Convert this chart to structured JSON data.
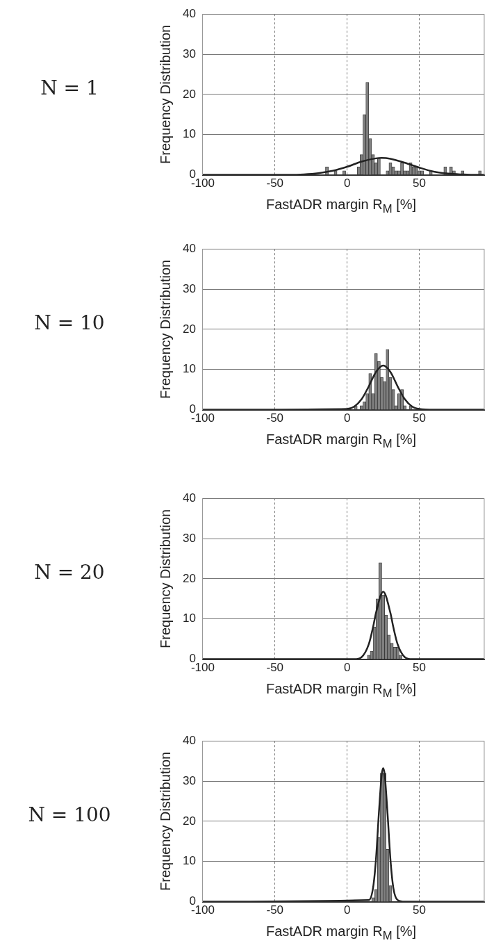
{
  "chart_data": [
    {
      "type": "histogram",
      "title": "N = 1",
      "xlabel": "FastADR margin R$_{M}$ [%]",
      "ylabel": "Frequency Distribution",
      "xlim": [
        -100,
        95
      ],
      "xticks": [
        -100,
        -50,
        0,
        50
      ],
      "ylim": [
        0,
        40
      ],
      "yticks": [
        0,
        10,
        20,
        30,
        40
      ],
      "grid": true,
      "legend": false,
      "marker": "none",
      "series": [
        {
          "type": "histogram",
          "color": "#808080",
          "bins": [
            -15,
            -13,
            -11,
            -9,
            -7,
            -5,
            -3,
            -1,
            1,
            3,
            5,
            7,
            9,
            11,
            13,
            15,
            17,
            19,
            21,
            23,
            25,
            27,
            29,
            31,
            33,
            35,
            37,
            39,
            41,
            43,
            45,
            47,
            49,
            51,
            53,
            55,
            57,
            59,
            61,
            63,
            65,
            67,
            69,
            71,
            73,
            75,
            77,
            79,
            81,
            83,
            85,
            87,
            89,
            91,
            93
          ],
          "values": [
            2,
            0,
            0,
            1,
            0,
            0,
            1,
            0,
            0,
            0,
            0,
            2,
            5,
            15,
            23,
            9,
            5,
            3,
            4,
            0,
            0,
            1,
            3,
            2,
            1,
            1,
            3,
            1,
            1,
            3,
            2,
            2,
            1,
            1,
            0,
            0,
            1,
            0,
            0,
            0,
            0,
            2,
            0,
            2,
            1,
            0,
            0,
            1,
            0,
            0,
            0,
            0,
            0,
            1
          ]
        },
        {
          "type": "line",
          "color": "#222222",
          "x": [
            -100,
            -50,
            -40,
            -30,
            -20,
            -10,
            0,
            10,
            20,
            24,
            30,
            40,
            50,
            60,
            70,
            80,
            90,
            95
          ],
          "values": [
            0,
            0,
            0,
            0.1,
            0.4,
            1,
            2,
            3.3,
            4.1,
            4.2,
            4,
            3,
            1.8,
            0.8,
            0.3,
            0.1,
            0,
            0
          ]
        }
      ]
    },
    {
      "type": "histogram",
      "title": "N = 10",
      "xlabel": "FastADR margin R$_{M}$ [%]",
      "ylabel": "Frequency Distribution",
      "xlim": [
        -100,
        95
      ],
      "xticks": [
        -100,
        -50,
        0,
        50
      ],
      "ylim": [
        0,
        40
      ],
      "yticks": [
        0,
        10,
        20,
        30,
        40
      ],
      "grid": true,
      "legend": false,
      "marker": "none",
      "series": [
        {
          "type": "histogram",
          "color": "#808080",
          "bins": [
            5,
            7,
            9,
            11,
            13,
            15,
            17,
            19,
            21,
            23,
            25,
            27,
            29,
            31,
            33,
            35,
            37,
            39,
            41,
            43,
            45
          ],
          "values": [
            1,
            0,
            1,
            2,
            4,
            9,
            4,
            14,
            12,
            8,
            7,
            15,
            8,
            5,
            1,
            4,
            5,
            1,
            0,
            1
          ]
        },
        {
          "type": "line",
          "color": "#222222",
          "x": [
            -100,
            0,
            5,
            10,
            15,
            20,
            25,
            30,
            35,
            40,
            45,
            50,
            60,
            95
          ],
          "values": [
            0,
            0.2,
            0.8,
            2.6,
            5.8,
            9.4,
            11,
            9.4,
            5.8,
            2.6,
            0.8,
            0.2,
            0,
            0
          ]
        }
      ]
    },
    {
      "type": "histogram",
      "title": "N = 20",
      "xlabel": "FastADR margin R$_{M}$ [%]",
      "ylabel": "Frequency Distribution",
      "xlim": [
        -100,
        95
      ],
      "xticks": [
        -100,
        -50,
        0,
        50
      ],
      "ylim": [
        0,
        40
      ],
      "yticks": [
        0,
        10,
        20,
        30,
        40
      ],
      "grid": true,
      "legend": false,
      "marker": "none",
      "series": [
        {
          "type": "histogram",
          "color": "#808080",
          "bins": [
            14,
            16,
            18,
            20,
            22,
            24,
            26,
            28,
            30,
            32,
            34,
            36,
            38
          ],
          "values": [
            1,
            2,
            8,
            15,
            24,
            16,
            11,
            6,
            4,
            3,
            3,
            1
          ]
        },
        {
          "type": "line",
          "color": "#222222",
          "x": [
            -100,
            5,
            10,
            15,
            18,
            20,
            25,
            30,
            32,
            35,
            40,
            45,
            95
          ],
          "values": [
            0,
            0,
            0.5,
            3.7,
            8,
            11.5,
            16.8,
            11.5,
            8,
            3.7,
            0.5,
            0,
            0
          ]
        }
      ]
    },
    {
      "type": "histogram",
      "title": "N = 100",
      "xlabel": "FastADR margin R$_{M}$ [%]",
      "ylabel": "Frequency Distribution",
      "xlim": [
        -100,
        95
      ],
      "xticks": [
        -100,
        -50,
        0,
        50
      ],
      "ylim": [
        0,
        40
      ],
      "yticks": [
        0,
        10,
        20,
        30,
        40
      ],
      "grid": true,
      "legend": false,
      "marker": "none",
      "series": [
        {
          "type": "histogram",
          "color": "#808080",
          "bins": [
            17,
            19,
            21,
            23,
            25,
            27,
            29,
            31
          ],
          "values": [
            1,
            3,
            16,
            32,
            32,
            13,
            4
          ]
        },
        {
          "type": "line",
          "color": "#222222",
          "x": [
            -100,
            15,
            18,
            20,
            22,
            24,
            25,
            26,
            28,
            30,
            32,
            35,
            40,
            95
          ],
          "values": [
            0,
            0.4,
            3.5,
            10.6,
            22,
            31.7,
            33.2,
            31.7,
            22,
            10.6,
            3.5,
            0.4,
            0,
            0
          ]
        }
      ]
    }
  ]
}
